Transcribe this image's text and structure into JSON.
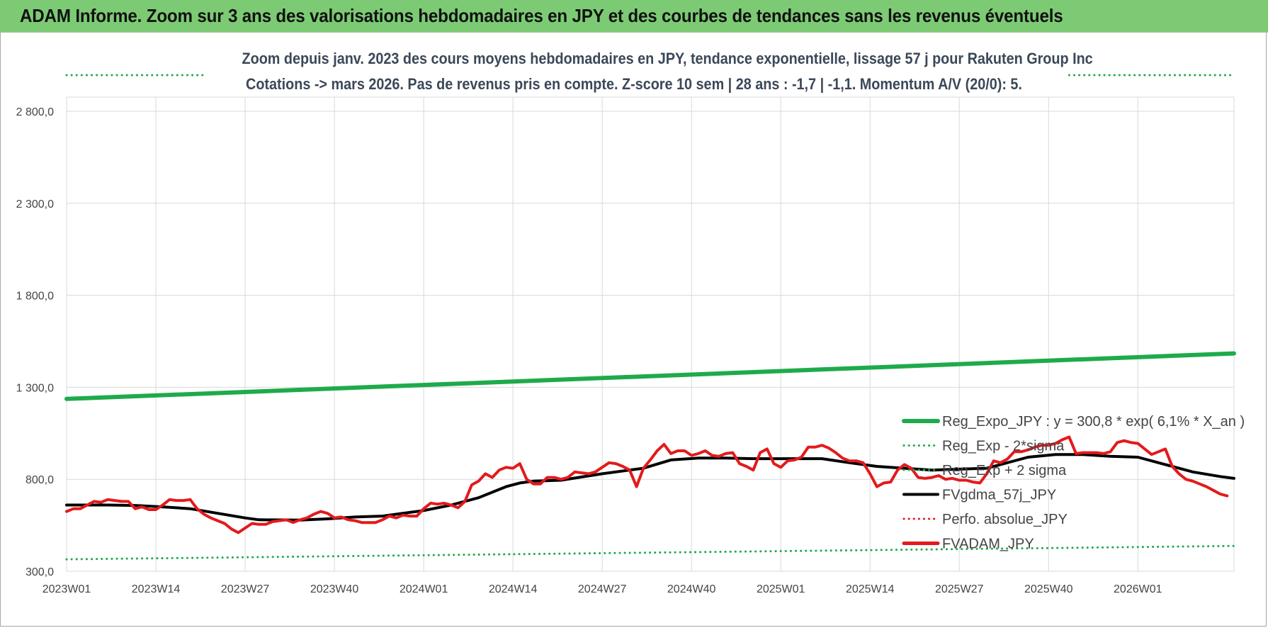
{
  "banner": {
    "title": "ADAM Informe. Zoom sur 3 ans des valorisations hebdomadaires en JPY et des courbes de tendances sans les revenus éventuels"
  },
  "chart_data": {
    "type": "line",
    "title": "Zoom depuis janv. 2023 des cours moyens hebdomadaires en JPY, tendance exponentielle, lissage 57 j pour Rakuten Group Inc",
    "subtitle": "Cotations -> mars 2026. Pas de revenus pris en compte. Z-score 10 sem | 28 ans : -1,7 | -1,1. Momentum A/V (20/0): 5.",
    "xlabel": "",
    "ylabel": "",
    "ylim": [
      300,
      2800
    ],
    "y_ticks": [
      "300,0",
      "800,0",
      "1 300,0",
      "1 800,0",
      "2 300,0",
      "2 800,0"
    ],
    "y_tick_values": [
      300,
      800,
      1300,
      1800,
      2300,
      2800
    ],
    "x_ticks": [
      "2023W01",
      "2023W14",
      "2023W27",
      "2023W40",
      "2024W01",
      "2024W14",
      "2024W27",
      "2024W40",
      "2025W01",
      "2025W14",
      "2025W27",
      "2025W40",
      "2026W01"
    ],
    "x_tick_weeks": [
      0,
      13,
      26,
      39,
      52,
      65,
      78,
      91,
      104,
      117,
      130,
      143,
      156
    ],
    "x_range_weeks": [
      0,
      170
    ],
    "grid": true,
    "legend_position": "right",
    "colors": {
      "reg_expo": "#1faa4b",
      "reg_minus": "#1faa4b",
      "reg_plus": "#1faa4b",
      "fvgdma": "#000000",
      "perfo": "#e31a1c",
      "fvadam": "#e31a1c"
    },
    "series": [
      {
        "key": "reg_expo",
        "name": "Reg_Expo_JPY : y = 300,8 * exp( 6,1% *  X_an )",
        "style": "solid",
        "width": 6,
        "points": [
          [
            0,
            1237
          ],
          [
            170,
            1484
          ]
        ]
      },
      {
        "key": "reg_minus",
        "name": "Reg_Exp - 2*sigma",
        "style": "dotted",
        "width": 3,
        "points": [
          [
            0,
            365
          ],
          [
            170,
            438
          ]
        ]
      },
      {
        "key": "reg_plus",
        "name": "Reg_Exp + 2 sigma",
        "style": "dotted",
        "width": 3,
        "points": [
          [
            0,
            2913
          ],
          [
            20,
            2913
          ]
        ]
      },
      {
        "key": "reg_plus_right",
        "name": "",
        "style": "dotted",
        "width": 3,
        "points": [
          [
            146,
            2913
          ],
          [
            170,
            2913
          ]
        ]
      },
      {
        "key": "fvgdma",
        "name": "FVgdma_57j_JPY",
        "style": "solid",
        "width": 4,
        "points": [
          [
            0,
            660
          ],
          [
            6,
            660
          ],
          [
            10,
            658
          ],
          [
            14,
            650
          ],
          [
            18,
            640
          ],
          [
            22,
            615
          ],
          [
            26,
            590
          ],
          [
            28,
            580
          ],
          [
            34,
            578
          ],
          [
            38,
            585
          ],
          [
            42,
            595
          ],
          [
            46,
            600
          ],
          [
            50,
            620
          ],
          [
            52,
            630
          ],
          [
            56,
            660
          ],
          [
            60,
            700
          ],
          [
            64,
            760
          ],
          [
            66,
            780
          ],
          [
            68,
            790
          ],
          [
            72,
            795
          ],
          [
            78,
            830
          ],
          [
            82,
            850
          ],
          [
            84,
            860
          ],
          [
            88,
            905
          ],
          [
            92,
            915
          ],
          [
            96,
            915
          ],
          [
            100,
            912
          ],
          [
            104,
            912
          ],
          [
            110,
            912
          ],
          [
            114,
            890
          ],
          [
            118,
            870
          ],
          [
            122,
            860
          ],
          [
            126,
            850
          ],
          [
            130,
            855
          ],
          [
            134,
            860
          ],
          [
            140,
            920
          ],
          [
            144,
            935
          ],
          [
            148,
            935
          ],
          [
            152,
            925
          ],
          [
            156,
            920
          ],
          [
            160,
            880
          ],
          [
            164,
            840
          ],
          [
            168,
            815
          ],
          [
            170,
            805
          ]
        ]
      },
      {
        "key": "perfo",
        "name": "Perfo. absolue_JPY",
        "style": "dotted",
        "width": 3,
        "points": []
      },
      {
        "key": "fvadam",
        "name": "FVADAM_JPY",
        "style": "solid",
        "width": 4,
        "points": [
          [
            0,
            625
          ],
          [
            1,
            640
          ],
          [
            2,
            640
          ],
          [
            3,
            660
          ],
          [
            4,
            680
          ],
          [
            5,
            675
          ],
          [
            6,
            690
          ],
          [
            7,
            685
          ],
          [
            8,
            680
          ],
          [
            9,
            680
          ],
          [
            10,
            640
          ],
          [
            11,
            650
          ],
          [
            12,
            635
          ],
          [
            13,
            635
          ],
          [
            14,
            660
          ],
          [
            15,
            690
          ],
          [
            16,
            685
          ],
          [
            17,
            685
          ],
          [
            18,
            690
          ],
          [
            19,
            640
          ],
          [
            20,
            610
          ],
          [
            21,
            590
          ],
          [
            22,
            575
          ],
          [
            23,
            560
          ],
          [
            24,
            530
          ],
          [
            25,
            510
          ],
          [
            26,
            535
          ],
          [
            27,
            560
          ],
          [
            28,
            555
          ],
          [
            29,
            555
          ],
          [
            30,
            570
          ],
          [
            31,
            575
          ],
          [
            32,
            580
          ],
          [
            33,
            565
          ],
          [
            34,
            580
          ],
          [
            35,
            590
          ],
          [
            36,
            610
          ],
          [
            37,
            625
          ],
          [
            38,
            615
          ],
          [
            39,
            590
          ],
          [
            40,
            595
          ],
          [
            41,
            580
          ],
          [
            42,
            575
          ],
          [
            43,
            565
          ],
          [
            44,
            565
          ],
          [
            45,
            565
          ],
          [
            46,
            580
          ],
          [
            47,
            600
          ],
          [
            48,
            590
          ],
          [
            49,
            605
          ],
          [
            50,
            600
          ],
          [
            51,
            600
          ],
          [
            52,
            640
          ],
          [
            53,
            670
          ],
          [
            54,
            665
          ],
          [
            55,
            670
          ],
          [
            56,
            660
          ],
          [
            57,
            645
          ],
          [
            58,
            680
          ],
          [
            59,
            770
          ],
          [
            60,
            790
          ],
          [
            61,
            830
          ],
          [
            62,
            810
          ],
          [
            63,
            850
          ],
          [
            64,
            865
          ],
          [
            65,
            860
          ],
          [
            66,
            885
          ],
          [
            67,
            800
          ],
          [
            68,
            775
          ],
          [
            69,
            775
          ],
          [
            70,
            810
          ],
          [
            71,
            810
          ],
          [
            72,
            800
          ],
          [
            73,
            810
          ],
          [
            74,
            840
          ],
          [
            75,
            835
          ],
          [
            76,
            830
          ],
          [
            77,
            840
          ],
          [
            78,
            865
          ],
          [
            79,
            890
          ],
          [
            80,
            885
          ],
          [
            81,
            870
          ],
          [
            82,
            850
          ],
          [
            83,
            760
          ],
          [
            84,
            860
          ],
          [
            85,
            905
          ],
          [
            86,
            955
          ],
          [
            87,
            990
          ],
          [
            88,
            940
          ],
          [
            89,
            955
          ],
          [
            90,
            955
          ],
          [
            91,
            930
          ],
          [
            92,
            940
          ],
          [
            93,
            955
          ],
          [
            94,
            930
          ],
          [
            95,
            925
          ],
          [
            96,
            940
          ],
          [
            97,
            945
          ],
          [
            98,
            885
          ],
          [
            99,
            870
          ],
          [
            100,
            850
          ],
          [
            101,
            945
          ],
          [
            102,
            965
          ],
          [
            103,
            885
          ],
          [
            104,
            865
          ],
          [
            105,
            900
          ],
          [
            106,
            905
          ],
          [
            107,
            920
          ],
          [
            108,
            975
          ],
          [
            109,
            975
          ],
          [
            110,
            985
          ],
          [
            111,
            970
          ],
          [
            112,
            945
          ],
          [
            113,
            915
          ],
          [
            114,
            900
          ],
          [
            115,
            900
          ],
          [
            116,
            890
          ],
          [
            117,
            830
          ],
          [
            118,
            760
          ],
          [
            119,
            780
          ],
          [
            120,
            785
          ],
          [
            121,
            850
          ],
          [
            122,
            880
          ],
          [
            123,
            860
          ],
          [
            124,
            810
          ],
          [
            125,
            805
          ],
          [
            126,
            810
          ],
          [
            127,
            820
          ],
          [
            128,
            800
          ],
          [
            129,
            805
          ],
          [
            130,
            795
          ],
          [
            131,
            795
          ],
          [
            132,
            785
          ],
          [
            133,
            780
          ],
          [
            134,
            830
          ],
          [
            135,
            900
          ],
          [
            136,
            890
          ],
          [
            137,
            910
          ],
          [
            138,
            950
          ],
          [
            139,
            950
          ],
          [
            140,
            960
          ],
          [
            141,
            975
          ],
          [
            142,
            985
          ],
          [
            143,
            985
          ],
          [
            144,
            995
          ],
          [
            145,
            1015
          ],
          [
            146,
            1030
          ],
          [
            147,
            940
          ],
          [
            148,
            945
          ],
          [
            149,
            945
          ],
          [
            150,
            945
          ],
          [
            151,
            940
          ],
          [
            152,
            950
          ],
          [
            153,
            1000
          ],
          [
            154,
            1010
          ],
          [
            155,
            1000
          ],
          [
            156,
            995
          ],
          [
            157,
            965
          ],
          [
            158,
            935
          ],
          [
            159,
            950
          ],
          [
            160,
            965
          ],
          [
            161,
            870
          ],
          [
            162,
            830
          ],
          [
            163,
            800
          ],
          [
            164,
            790
          ],
          [
            165,
            775
          ],
          [
            166,
            760
          ],
          [
            167,
            740
          ],
          [
            168,
            720
          ],
          [
            169,
            710
          ]
        ]
      }
    ]
  }
}
